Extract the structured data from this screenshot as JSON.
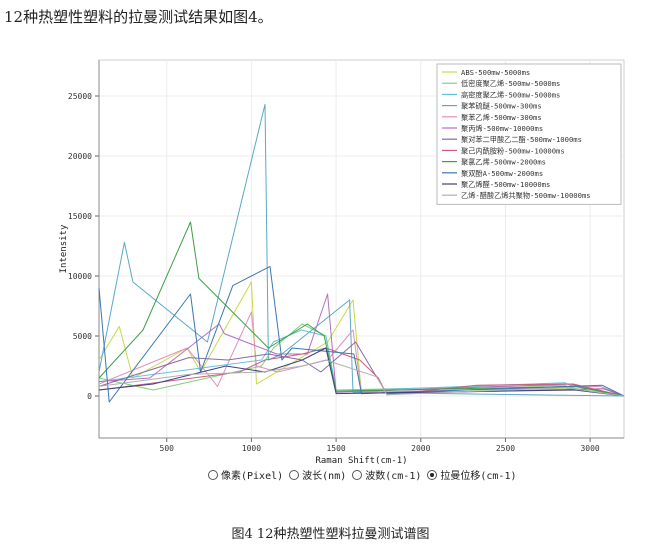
{
  "intro_text": "12种热塑性塑料的拉曼测试结果如图4。",
  "caption": "图4 12种热塑性塑料拉曼测试谱图",
  "radio_options": [
    {
      "label": "像素(Pixel)",
      "checked": false
    },
    {
      "label": "波长(nm)",
      "checked": false
    },
    {
      "label": "波数(cm-1)",
      "checked": false
    },
    {
      "label": "拉曼位移(cm-1)",
      "checked": true
    }
  ],
  "chart_data": {
    "type": "line",
    "xlabel": "Raman Shift(cm-1)",
    "ylabel": "Intensity",
    "xlim": [
      100,
      3200
    ],
    "ylim": [
      -3500,
      28000
    ],
    "xticks": [
      500,
      1000,
      1500,
      2000,
      2500,
      3000
    ],
    "yticks": [
      0,
      5000,
      10000,
      15000,
      20000,
      25000
    ],
    "legend_position": "top-right",
    "series": [
      {
        "name": "ABS-500mw-5000ms",
        "color": "#c8d84a",
        "points": [
          [
            100,
            3000
          ],
          [
            220,
            5800
          ],
          [
            300,
            1500
          ],
          [
            620,
            4000
          ],
          [
            700,
            2000
          ],
          [
            1000,
            9500
          ],
          [
            1030,
            1000
          ],
          [
            1450,
            4500
          ],
          [
            1600,
            8000
          ],
          [
            1650,
            200
          ],
          [
            2240,
            500
          ],
          [
            2900,
            600
          ],
          [
            3200,
            0
          ]
        ]
      },
      {
        "name": "低密度聚乙烯-500mw-5000ms",
        "color": "#7fd07a",
        "points": [
          [
            100,
            1500
          ],
          [
            420,
            500
          ],
          [
            1060,
            2500
          ],
          [
            1130,
            4000
          ],
          [
            1300,
            6000
          ],
          [
            1440,
            5000
          ],
          [
            1500,
            500
          ],
          [
            2850,
            900
          ],
          [
            2880,
            700
          ],
          [
            3200,
            0
          ]
        ]
      },
      {
        "name": "高密度聚乙烯-500mw-5000ms",
        "color": "#66c2d8",
        "points": [
          [
            100,
            1200
          ],
          [
            1060,
            3000
          ],
          [
            1130,
            4500
          ],
          [
            1295,
            5500
          ],
          [
            1440,
            5000
          ],
          [
            1500,
            400
          ],
          [
            2850,
            1100
          ],
          [
            2880,
            900
          ],
          [
            3200,
            0
          ]
        ]
      },
      {
        "name": "聚苯硫醚-500mw-300ms",
        "color": "#5aa8c8",
        "points": [
          [
            100,
            2000
          ],
          [
            250,
            12800
          ],
          [
            300,
            9500
          ],
          [
            740,
            4500
          ],
          [
            1080,
            24300
          ],
          [
            1100,
            3000
          ],
          [
            1180,
            3500
          ],
          [
            1580,
            8000
          ],
          [
            1600,
            300
          ],
          [
            3200,
            0
          ]
        ]
      },
      {
        "name": "聚苯乙烯-500mw-300ms",
        "color": "#e090c0",
        "points": [
          [
            100,
            1000
          ],
          [
            620,
            4000
          ],
          [
            800,
            800
          ],
          [
            1000,
            7000
          ],
          [
            1030,
            2500
          ],
          [
            1155,
            2000
          ],
          [
            1450,
            3000
          ],
          [
            1600,
            5500
          ],
          [
            1650,
            300
          ],
          [
            3060,
            800
          ],
          [
            3200,
            0
          ]
        ]
      },
      {
        "name": "聚丙烯-500mw-10000ms",
        "color": "#b070c0",
        "points": [
          [
            100,
            1200
          ],
          [
            400,
            1500
          ],
          [
            810,
            6000
          ],
          [
            840,
            5200
          ],
          [
            1150,
            3500
          ],
          [
            1330,
            3500
          ],
          [
            1450,
            8500
          ],
          [
            1500,
            300
          ],
          [
            2880,
            1000
          ],
          [
            3200,
            0
          ]
        ]
      },
      {
        "name": "聚对苯二甲酸乙二酯-500mw-1000ms",
        "color": "#8a6aa0",
        "points": [
          [
            100,
            800
          ],
          [
            630,
            3200
          ],
          [
            860,
            3000
          ],
          [
            1100,
            3500
          ],
          [
            1300,
            3000
          ],
          [
            1410,
            2000
          ],
          [
            1615,
            4500
          ],
          [
            1730,
            1800
          ],
          [
            1800,
            200
          ],
          [
            3080,
            600
          ],
          [
            3200,
            0
          ]
        ]
      },
      {
        "name": "聚己内酰胺粉-500mw-10000ms",
        "color": "#c86080",
        "points": [
          [
            100,
            500
          ],
          [
            930,
            2000
          ],
          [
            1080,
            3000
          ],
          [
            1300,
            3500
          ],
          [
            1440,
            4000
          ],
          [
            1640,
            3000
          ],
          [
            1750,
            1500
          ],
          [
            1800,
            100
          ],
          [
            2330,
            900
          ],
          [
            2900,
            1000
          ],
          [
            3200,
            0
          ]
        ]
      },
      {
        "name": "聚氯乙烯-500mw-2000ms",
        "color": "#3aa048",
        "points": [
          [
            100,
            1500
          ],
          [
            360,
            5500
          ],
          [
            640,
            14500
          ],
          [
            690,
            9800
          ],
          [
            1100,
            4000
          ],
          [
            1330,
            6000
          ],
          [
            1430,
            5000
          ],
          [
            1500,
            400
          ],
          [
            2910,
            800
          ],
          [
            3200,
            0
          ]
        ]
      },
      {
        "name": "聚双酚A-500mw-2000ms",
        "color": "#3a78b0",
        "points": [
          [
            100,
            9000
          ],
          [
            160,
            -500
          ],
          [
            640,
            8500
          ],
          [
            700,
            2000
          ],
          [
            890,
            9200
          ],
          [
            1110,
            10800
          ],
          [
            1180,
            3000
          ],
          [
            1240,
            4000
          ],
          [
            1605,
            3500
          ],
          [
            1650,
            200
          ],
          [
            3070,
            900
          ],
          [
            3200,
            0
          ]
        ]
      },
      {
        "name": "聚乙烯醛-500mw-10000ms",
        "color": "#404080",
        "points": [
          [
            100,
            500
          ],
          [
            420,
            1000
          ],
          [
            850,
            2500
          ],
          [
            1080,
            2000
          ],
          [
            1300,
            3000
          ],
          [
            1440,
            4000
          ],
          [
            1500,
            200
          ],
          [
            2910,
            500
          ],
          [
            3200,
            0
          ]
        ]
      },
      {
        "name": "乙烯-醋酸乙烯共聚物-500mw-10000ms",
        "color": "#b0b0b0",
        "points": [
          [
            100,
            800
          ],
          [
            630,
            1800
          ],
          [
            1060,
            2000
          ],
          [
            1300,
            2500
          ],
          [
            1440,
            3000
          ],
          [
            1740,
            1600
          ],
          [
            1800,
            100
          ],
          [
            2850,
            700
          ],
          [
            3200,
            0
          ]
        ]
      }
    ]
  }
}
